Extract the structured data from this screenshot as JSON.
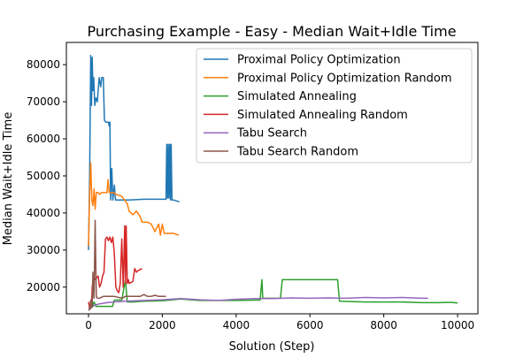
{
  "chart_data": {
    "type": "line",
    "title": "Purchasing Example - Easy - Median Wait+Idle Time",
    "xlabel": "Solution (Step)",
    "ylabel": "Median Wait+Idle Time",
    "xlim": [
      -600,
      10550
    ],
    "ylim": [
      12800,
      86000
    ],
    "x_ticks": [
      0,
      2000,
      4000,
      6000,
      8000,
      10000
    ],
    "y_ticks": [
      20000,
      30000,
      40000,
      50000,
      60000,
      70000,
      80000
    ],
    "grid": false,
    "legend_position": "top-right",
    "series": [
      {
        "name": "Proximal Policy Optimization",
        "color": "#1f77b4",
        "points": [
          [
            0,
            30000
          ],
          [
            30,
            50000
          ],
          [
            60,
            82500
          ],
          [
            80,
            69000
          ],
          [
            100,
            82000
          ],
          [
            120,
            73000
          ],
          [
            140,
            76500
          ],
          [
            170,
            69000
          ],
          [
            200,
            71000
          ],
          [
            240,
            70000
          ],
          [
            260,
            73000
          ],
          [
            290,
            76500
          ],
          [
            330,
            74000
          ],
          [
            360,
            76500
          ],
          [
            400,
            76500
          ],
          [
            430,
            65000
          ],
          [
            470,
            64500
          ],
          [
            540,
            64500
          ],
          [
            560,
            63500
          ],
          [
            580,
            64500
          ],
          [
            600,
            43500
          ],
          [
            630,
            52000
          ],
          [
            660,
            43500
          ],
          [
            700,
            47500
          ],
          [
            730,
            43500
          ],
          [
            1000,
            43500
          ],
          [
            1100,
            43500
          ],
          [
            1500,
            43700
          ],
          [
            2000,
            43700
          ],
          [
            2100,
            43700
          ],
          [
            2120,
            58500
          ],
          [
            2140,
            44000
          ],
          [
            2160,
            58500
          ],
          [
            2180,
            44000
          ],
          [
            2200,
            58500
          ],
          [
            2220,
            43500
          ],
          [
            2240,
            58500
          ],
          [
            2260,
            43500
          ],
          [
            2300,
            43500
          ],
          [
            2460,
            43000
          ]
        ]
      },
      {
        "name": "Proximal Policy Optimization Random",
        "color": "#ff7f0e",
        "points": [
          [
            0,
            31000
          ],
          [
            30,
            45000
          ],
          [
            60,
            53500
          ],
          [
            90,
            43500
          ],
          [
            120,
            42000
          ],
          [
            150,
            46500
          ],
          [
            180,
            41000
          ],
          [
            210,
            45500
          ],
          [
            260,
            45500
          ],
          [
            300,
            45000
          ],
          [
            350,
            45500
          ],
          [
            500,
            45500
          ],
          [
            530,
            49000
          ],
          [
            560,
            45500
          ],
          [
            700,
            45500
          ],
          [
            750,
            45000
          ],
          [
            900,
            44500
          ],
          [
            1050,
            42500
          ],
          [
            1100,
            40500
          ],
          [
            1200,
            39500
          ],
          [
            1300,
            40500
          ],
          [
            1400,
            39000
          ],
          [
            1450,
            37500
          ],
          [
            1600,
            37500
          ],
          [
            1700,
            37000
          ],
          [
            1800,
            35000
          ],
          [
            1900,
            37000
          ],
          [
            1950,
            34000
          ],
          [
            2000,
            37000
          ],
          [
            2050,
            34500
          ],
          [
            2300,
            34500
          ],
          [
            2450,
            34000
          ]
        ]
      },
      {
        "name": "Simulated Annealing",
        "color": "#2ca02c",
        "points": [
          [
            0,
            14500
          ],
          [
            100,
            14500
          ],
          [
            150,
            16000
          ],
          [
            200,
            14800
          ],
          [
            300,
            14800
          ],
          [
            500,
            14800
          ],
          [
            650,
            14800
          ],
          [
            700,
            16500
          ],
          [
            900,
            16500
          ],
          [
            1000,
            22000
          ],
          [
            1050,
            16000
          ],
          [
            1200,
            16000
          ],
          [
            1500,
            16200
          ],
          [
            2000,
            16300
          ],
          [
            2500,
            16800
          ],
          [
            3000,
            16400
          ],
          [
            3500,
            16400
          ],
          [
            4000,
            16400
          ],
          [
            4500,
            16500
          ],
          [
            4650,
            16500
          ],
          [
            4700,
            22000
          ],
          [
            4720,
            17000
          ],
          [
            5000,
            17000
          ],
          [
            5200,
            17000
          ],
          [
            5250,
            22000
          ],
          [
            6500,
            22000
          ],
          [
            6750,
            22000
          ],
          [
            6800,
            16200
          ],
          [
            7500,
            16000
          ],
          [
            8000,
            16000
          ],
          [
            8500,
            16000
          ],
          [
            9000,
            15800
          ],
          [
            9500,
            15800
          ],
          [
            9800,
            15900
          ],
          [
            10000,
            15700
          ]
        ]
      },
      {
        "name": "Simulated Annealing Random",
        "color": "#d62728",
        "points": [
          [
            0,
            16000
          ],
          [
            40,
            14000
          ],
          [
            80,
            15000
          ],
          [
            100,
            20000
          ],
          [
            140,
            23000
          ],
          [
            180,
            22000
          ],
          [
            220,
            22500
          ],
          [
            260,
            23000
          ],
          [
            300,
            20000
          ],
          [
            340,
            21000
          ],
          [
            380,
            23000
          ],
          [
            420,
            24000
          ],
          [
            460,
            33000
          ],
          [
            500,
            33500
          ],
          [
            540,
            32500
          ],
          [
            580,
            33500
          ],
          [
            620,
            32000
          ],
          [
            660,
            33500
          ],
          [
            700,
            29000
          ],
          [
            740,
            20000
          ],
          [
            780,
            19000
          ],
          [
            820,
            18500
          ],
          [
            860,
            21000
          ],
          [
            900,
            33000
          ],
          [
            940,
            20000
          ],
          [
            980,
            36500
          ],
          [
            1000,
            21000
          ],
          [
            1020,
            36500
          ],
          [
            1050,
            21000
          ],
          [
            1080,
            22000
          ],
          [
            1100,
            21000
          ],
          [
            1200,
            21500
          ],
          [
            1250,
            25000
          ],
          [
            1300,
            24000
          ],
          [
            1350,
            24500
          ],
          [
            1450,
            25000
          ]
        ]
      },
      {
        "name": "Tabu Search",
        "color": "#9467bd",
        "points": [
          [
            0,
            14200
          ],
          [
            50,
            14400
          ],
          [
            100,
            14800
          ],
          [
            200,
            15200
          ],
          [
            300,
            15500
          ],
          [
            500,
            15800
          ],
          [
            700,
            16000
          ],
          [
            1000,
            16200
          ],
          [
            1500,
            16400
          ],
          [
            2000,
            16600
          ],
          [
            2500,
            16900
          ],
          [
            3000,
            16600
          ],
          [
            3500,
            16400
          ],
          [
            4000,
            16700
          ],
          [
            4500,
            16900
          ],
          [
            5000,
            16900
          ],
          [
            5500,
            17100
          ],
          [
            6000,
            17000
          ],
          [
            6500,
            17100
          ],
          [
            7000,
            17000
          ],
          [
            7500,
            17200
          ],
          [
            8000,
            17100
          ],
          [
            8500,
            17200
          ],
          [
            9000,
            17000
          ],
          [
            9200,
            17000
          ]
        ]
      },
      {
        "name": "Tabu Search Random",
        "color": "#8c564b",
        "points": [
          [
            0,
            13700
          ],
          [
            30,
            14000
          ],
          [
            60,
            16500
          ],
          [
            80,
            14500
          ],
          [
            100,
            15000
          ],
          [
            120,
            24000
          ],
          [
            150,
            17000
          ],
          [
            180,
            38000
          ],
          [
            210,
            17500
          ],
          [
            240,
            17000
          ],
          [
            300,
            17000
          ],
          [
            400,
            17500
          ],
          [
            500,
            17500
          ],
          [
            700,
            17500
          ],
          [
            900,
            17000
          ],
          [
            1000,
            17500
          ],
          [
            1200,
            17500
          ],
          [
            1400,
            17500
          ],
          [
            1500,
            18000
          ],
          [
            1600,
            17500
          ],
          [
            1700,
            17500
          ],
          [
            1800,
            17800
          ],
          [
            1900,
            17500
          ],
          [
            2100,
            17500
          ]
        ]
      }
    ]
  }
}
